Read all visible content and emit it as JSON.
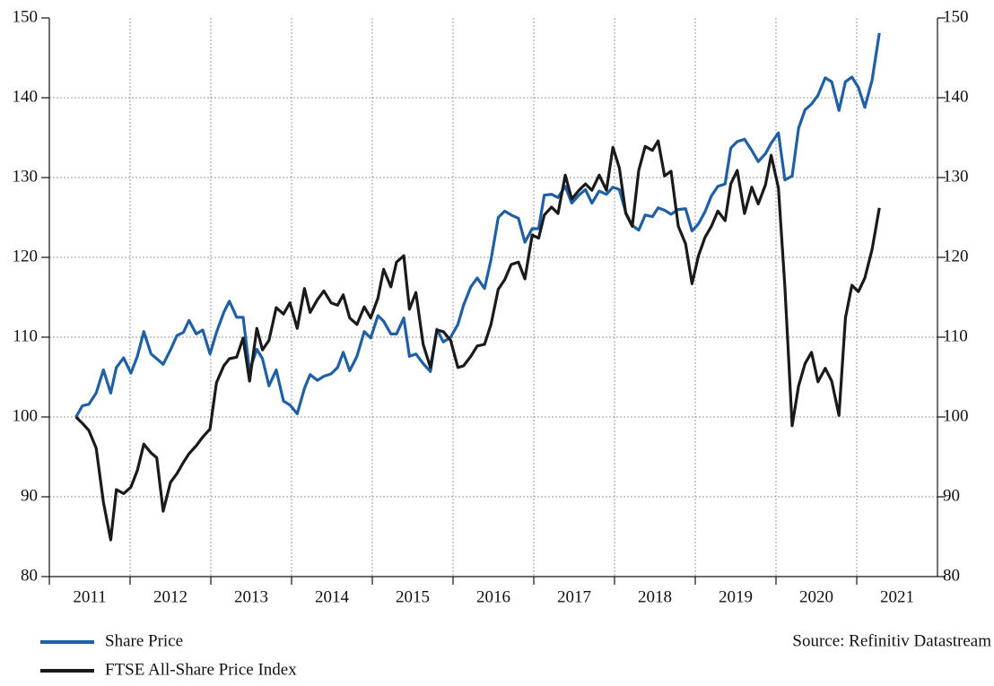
{
  "chart_data": {
    "type": "line",
    "annotation": "Source: Refinitiv Datastream",
    "x": [
      2011.33,
      2011.41,
      2011.49,
      2011.58,
      2011.67,
      2011.76,
      2011.83,
      2011.92,
      2012.01,
      2012.09,
      2012.17,
      2012.26,
      2012.33,
      2012.41,
      2012.5,
      2012.58,
      2012.66,
      2012.73,
      2012.82,
      2012.9,
      2012.99,
      2013.07,
      2013.16,
      2013.23,
      2013.32,
      2013.4,
      2013.48,
      2013.57,
      2013.64,
      2013.72,
      2013.81,
      2013.9,
      2013.98,
      2014.07,
      2014.16,
      2014.23,
      2014.32,
      2014.4,
      2014.49,
      2014.57,
      2014.64,
      2014.72,
      2014.81,
      2014.9,
      2014.98,
      2015.07,
      2015.14,
      2015.23,
      2015.3,
      2015.39,
      2015.46,
      2015.54,
      2015.63,
      2015.72,
      2015.8,
      2015.88,
      2015.97,
      2016.06,
      2016.13,
      2016.22,
      2016.3,
      2016.39,
      2016.47,
      2016.56,
      2016.64,
      2016.72,
      2016.81,
      2016.89,
      2016.98,
      2017.06,
      2017.13,
      2017.22,
      2017.3,
      2017.39,
      2017.47,
      2017.56,
      2017.64,
      2017.72,
      2017.81,
      2017.9,
      2017.98,
      2018.06,
      2018.14,
      2018.22,
      2018.3,
      2018.38,
      2018.47,
      2018.54,
      2018.62,
      2018.7,
      2018.79,
      2018.88,
      2018.96,
      2019.04,
      2019.12,
      2019.2,
      2019.28,
      2019.37,
      2019.44,
      2019.52,
      2019.61,
      2019.7,
      2019.78,
      2019.87,
      2019.94,
      2020.03,
      2020.11,
      2020.2,
      2020.28,
      2020.36,
      2020.44,
      2020.52,
      2020.61,
      2020.69,
      2020.78,
      2020.86,
      2020.94,
      2021.02,
      2021.1,
      2021.19,
      2021.28
    ],
    "series": [
      {
        "name": "Share Price",
        "color": "#1f5fa6",
        "values": [
          100,
          101.4,
          101.6,
          103,
          105.9,
          103,
          106.2,
          107.4,
          105.5,
          107.6,
          110.7,
          107.9,
          107.3,
          106.6,
          108.4,
          110.2,
          110.6,
          112.1,
          110.4,
          110.9,
          107.9,
          110.6,
          113.1,
          114.5,
          112.5,
          112.5,
          105.8,
          108.5,
          107.3,
          103.9,
          105.9,
          102,
          101.5,
          100.4,
          103.6,
          105.3,
          104.6,
          105.1,
          105.4,
          106.2,
          108.1,
          105.8,
          107.6,
          110.7,
          109.9,
          112.7,
          112,
          110.4,
          110.4,
          112.4,
          107.6,
          107.9,
          106.7,
          105.7,
          111,
          109.4,
          110,
          111.6,
          114,
          116.3,
          117.4,
          116.1,
          119.7,
          125,
          125.8,
          125.3,
          124.9,
          121.9,
          123.6,
          123.6,
          127.8,
          127.9,
          127.5,
          128.9,
          126.8,
          127.8,
          128.5,
          126.8,
          128.3,
          127.9,
          128.8,
          128.5,
          125.6,
          124,
          123.4,
          125.3,
          125.1,
          126.2,
          125.9,
          125.4,
          126,
          126.1,
          123.3,
          124.2,
          125.7,
          127.7,
          128.9,
          129.2,
          133.7,
          134.5,
          134.8,
          133.4,
          132,
          133,
          134.3,
          135.6,
          129.7,
          130.2,
          136.2,
          138.5,
          139.2,
          140.3,
          142.5,
          142,
          138.4,
          142,
          142.6,
          141.3,
          138.8,
          142.2,
          148.1
        ]
      },
      {
        "name": "FTSE All-Share Price Index",
        "color": "#1a1a1a",
        "axis": "y2",
        "values": [
          100,
          99.2,
          98.3,
          96.1,
          89.3,
          84.6,
          90.9,
          90.4,
          91.2,
          93.3,
          96.6,
          95.5,
          94.9,
          88.2,
          91.8,
          92.9,
          94.3,
          95.4,
          96.4,
          97.5,
          98.5,
          104.3,
          106.4,
          107.3,
          107.5,
          109.9,
          104.5,
          111.1,
          108.4,
          109.6,
          113.7,
          112.9,
          114.3,
          111.1,
          116.1,
          113.1,
          114.7,
          115.8,
          114.3,
          114,
          115.3,
          112.4,
          111.6,
          113.8,
          112.4,
          114.9,
          118.5,
          116.3,
          119.4,
          120.2,
          113.5,
          115.6,
          109.1,
          106.2,
          110.9,
          110.7,
          109.6,
          106.2,
          106.4,
          107.6,
          108.9,
          109.1,
          111.6,
          116,
          117.2,
          119.1,
          119.4,
          117.3,
          122.8,
          122.4,
          125.3,
          126.3,
          125.5,
          130.3,
          127.3,
          128.4,
          129.2,
          128.4,
          130.3,
          128.4,
          133.8,
          131.2,
          125.5,
          123.9,
          130.9,
          133.9,
          133.4,
          134.6,
          130.2,
          130.8,
          123.9,
          121.7,
          116.7,
          120.2,
          122.5,
          123.9,
          125.8,
          124.6,
          129.2,
          130.9,
          125.5,
          128.8,
          126.7,
          129.1,
          132.8,
          128.7,
          116.3,
          98.9,
          103.9,
          106.7,
          108.1,
          104.4,
          106.1,
          104.5,
          100.2,
          112.4,
          116.5,
          115.7,
          117.4,
          121,
          126.2
        ]
      }
    ],
    "xlim": [
      2011,
      2022
    ],
    "xticks": [
      2011,
      2012,
      2013,
      2014,
      2015,
      2016,
      2017,
      2018,
      2019,
      2020,
      2021
    ],
    "ylim": [
      80,
      150
    ],
    "yticks": [
      80,
      90,
      100,
      110,
      120,
      130,
      140,
      150
    ],
    "y2lim": [
      80,
      150
    ],
    "y2ticks": [
      80,
      90,
      100,
      110,
      120,
      130,
      140,
      150
    ],
    "grid": true,
    "legend": "bottom-left"
  }
}
